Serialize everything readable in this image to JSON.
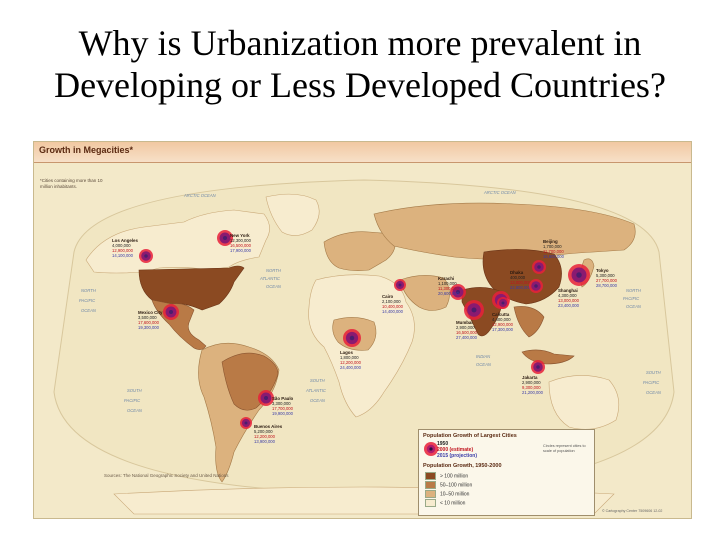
{
  "slide": {
    "title": "Why is Urbanization more prevalent in Developing or Less Developed Countries?"
  },
  "map": {
    "title": "Growth in Megacities*",
    "note": "*Cities containing more than 10 million inhabitants.",
    "sources": "Sources: The National Geographic Society and United Nations",
    "copyright": "© Cartography Center 7509606 12-02",
    "ocean_labels": {
      "arctic": "ARCTIC OCEAN",
      "arctic_east": "ARCTIC OCEAN",
      "north": "NORTH",
      "atlantic": "ATLANTIC",
      "ocean_na": "OCEAN",
      "north_pacific_w_1": "NORTH",
      "north_pacific_w_2": "PACIFIC",
      "north_pacific_w_3": "OCEAN",
      "north_pacific_e_1": "NORTH",
      "north_pacific_e_2": "PACIFIC",
      "north_pacific_e_3": "OCEAN",
      "south_pacific_w_1": "SOUTH",
      "south_pacific_w_2": "PACIFIC",
      "south_pacific_w_3": "OCEAN",
      "south_pacific_e_1": "SOUTH",
      "south_pacific_e_2": "PACIFIC",
      "south_pacific_e_3": "OCEAN",
      "south_atlantic_1": "SOUTH",
      "south_atlantic_2": "ATLANTIC",
      "south_atlantic_3": "OCEAN",
      "indian_1": "INDIAN",
      "indian_2": "OCEAN"
    },
    "colors": {
      "ocean": "#f3e9c9",
      "over100": "#8b4a22",
      "m50_100": "#b97a46",
      "m10_50": "#dcb27e",
      "under10": "#f7eccf",
      "marker_outer": "#e8203a",
      "marker_inner": "#4a1d6e"
    },
    "cities": [
      {
        "name": "Los Angeles",
        "pop": [
          "4,000,000",
          "12,900,000",
          "14,100,000"
        ]
      },
      {
        "name": "New York",
        "pop": [
          "12,300,000",
          "16,500,000",
          "17,900,000"
        ]
      },
      {
        "name": "Mexico City",
        "pop": [
          "3,500,000",
          "17,600,000",
          "19,300,000"
        ]
      },
      {
        "name": "São Paulo",
        "pop": [
          "3,300,000",
          "17,700,000",
          "19,900,000"
        ]
      },
      {
        "name": "Buenos Aires",
        "pop": [
          "5,200,000",
          "12,200,000",
          "13,900,000"
        ]
      },
      {
        "name": "Lagos",
        "pop": [
          "1,800,000",
          "12,200,000",
          "24,400,000"
        ]
      },
      {
        "name": "Cairo",
        "pop": [
          "2,100,000",
          "10,400,000",
          "14,400,000"
        ]
      },
      {
        "name": "Karachi",
        "pop": [
          "1,100,000",
          "11,300,000",
          "20,600,000"
        ]
      },
      {
        "name": "Mumbai",
        "pop": [
          "2,900,000",
          "16,500,000",
          "27,400,000"
        ]
      },
      {
        "name": "Dhaka",
        "pop": [
          "400,000",
          "13,000,000",
          "22,800,000"
        ]
      },
      {
        "name": "Calcutta",
        "pop": [
          "4,400,000",
          "12,900,000",
          "17,300,000"
        ]
      },
      {
        "name": "Beijing",
        "pop": [
          "1,700,000",
          "11,700,000",
          "15,600,000"
        ]
      },
      {
        "name": "Shanghai",
        "pop": [
          "4,300,000",
          "13,000,000",
          "23,400,000"
        ]
      },
      {
        "name": "Tokyo",
        "pop": [
          "5,300,000",
          "27,700,000",
          "28,700,000"
        ]
      },
      {
        "name": "Jakarta",
        "pop": [
          "2,900,000",
          "9,300,000",
          "21,200,000"
        ]
      }
    ],
    "legend": {
      "title1": "Population Growth of Largest Cities",
      "year1": "1950",
      "year2": "2000 (estimate)",
      "year3": "2015 (projection)",
      "title2": "Population Growth, 1950-2000",
      "row1": "> 100 million",
      "row2": "50–100 million",
      "row3": "10–50 million",
      "row4": "< 10 million",
      "note": "Circles represent cities to scale of population"
    }
  }
}
